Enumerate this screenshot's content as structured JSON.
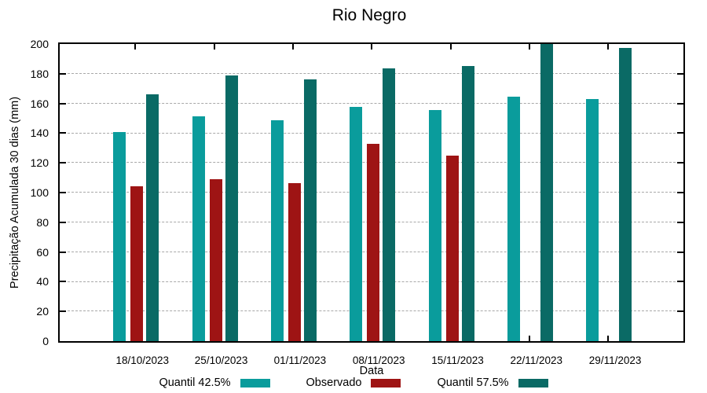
{
  "title": "Rio Negro",
  "axes": {
    "y_label": "Precipitação Acumulada 30 dias (mm)",
    "x_label": "Data"
  },
  "chart_data": {
    "type": "bar",
    "title": "Rio Negro",
    "xlabel": "Data",
    "ylabel": "Precipitação Acumulada 30 dias (mm)",
    "ylim": [
      0,
      200
    ],
    "y_tick_step": 20,
    "grid": true,
    "legend_position": "bottom",
    "categories": [
      "18/10/2023",
      "25/10/2023",
      "01/11/2023",
      "08/11/2023",
      "15/11/2023",
      "22/11/2023",
      "29/11/2023"
    ],
    "series": [
      {
        "name": "Quantil 42.5%",
        "color": "#0A9C9C",
        "values": [
          140.5,
          151.5,
          148.5,
          157.5,
          155.5,
          164.5,
          163
        ]
      },
      {
        "name": "Observado",
        "color": "#9E1414",
        "values": [
          104,
          109,
          106.5,
          133,
          125,
          null,
          null
        ]
      },
      {
        "name": "Quantil 57.5%",
        "color": "#0A6A65",
        "values": [
          166,
          179,
          176,
          183.5,
          185,
          200,
          197.5
        ]
      }
    ]
  }
}
